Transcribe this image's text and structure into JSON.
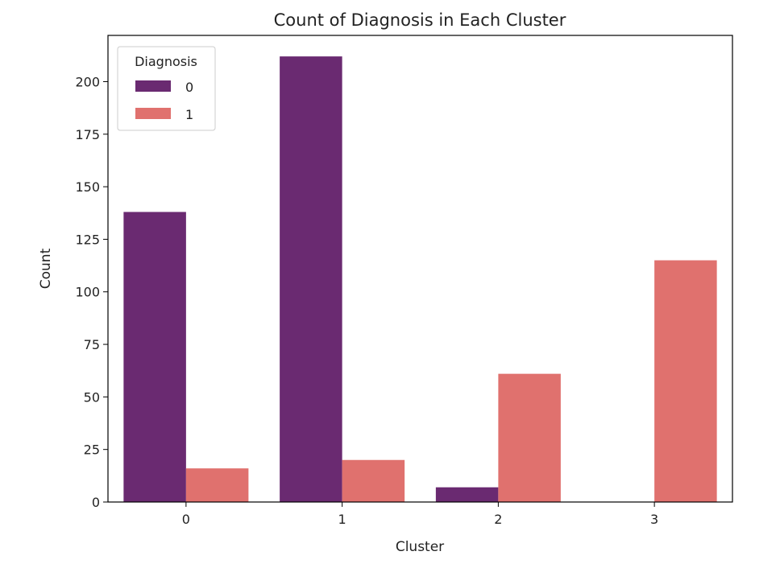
{
  "chart_data": {
    "type": "bar",
    "title": "Count of Diagnosis in Each Cluster",
    "xlabel": "Cluster",
    "ylabel": "Count",
    "categories": [
      "0",
      "1",
      "2",
      "3"
    ],
    "series": [
      {
        "name": "0",
        "values": [
          138,
          212,
          7,
          0
        ],
        "color": "#6a2a71"
      },
      {
        "name": "1",
        "values": [
          16,
          20,
          61,
          115
        ],
        "color": "#e0716e"
      }
    ],
    "ylim": [
      0,
      222
    ],
    "yticks": [
      0,
      25,
      50,
      75,
      100,
      125,
      150,
      175,
      200
    ],
    "legend": {
      "title": "Diagnosis",
      "position": "upper-left"
    },
    "grid": false
  }
}
